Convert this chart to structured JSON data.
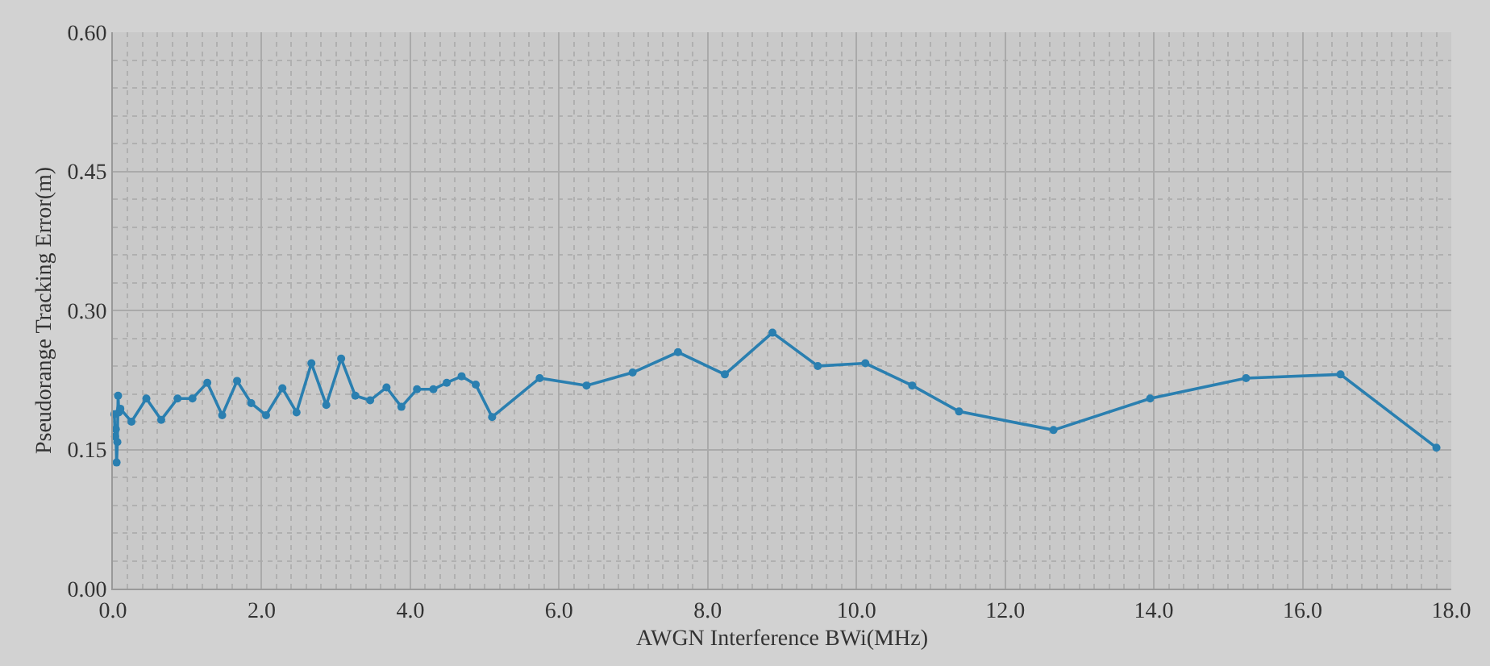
{
  "chart_data": {
    "type": "line",
    "xlabel": "AWGN Interference BWi(MHz)",
    "ylabel": "Pseudorange Tracking Error(m)",
    "marker": "circle",
    "line_style": "solid",
    "grid": true,
    "xlim": [
      0,
      18
    ],
    "xticks": [
      {
        "value": 0,
        "label": "0.0"
      },
      {
        "value": 2,
        "label": "2.0"
      },
      {
        "value": 4,
        "label": "4.0"
      },
      {
        "value": 6,
        "label": "6.0"
      },
      {
        "value": 8,
        "label": "8.0"
      },
      {
        "value": 10,
        "label": "10.0"
      },
      {
        "value": 12,
        "label": "12.0"
      },
      {
        "value": 14,
        "label": "14.0"
      },
      {
        "value": 16,
        "label": "16.0"
      },
      {
        "value": 18,
        "label": "18.0"
      }
    ],
    "ylim": [
      0,
      0.6
    ],
    "yticks": [
      {
        "value": 0,
        "label": "0.00"
      },
      {
        "value": 0.15,
        "label": "0.15"
      },
      {
        "value": 0.3,
        "label": "0.30"
      },
      {
        "value": 0.45,
        "label": "0.45"
      },
      {
        "value": 0.6,
        "label": "0.60"
      }
    ],
    "series": [
      {
        "color": "#2a7fb0",
        "x": [
          0.02,
          0.03,
          0.04,
          0.05,
          0.06,
          0.07,
          0.08,
          0.1,
          0.25,
          0.45,
          0.65,
          0.87,
          1.07,
          1.27,
          1.47,
          1.67,
          1.86,
          2.06,
          2.28,
          2.47,
          2.67,
          2.87,
          3.07,
          3.26,
          3.46,
          3.68,
          3.88,
          4.09,
          4.31,
          4.49,
          4.69,
          4.88,
          5.1,
          5.74,
          6.37,
          6.99,
          7.6,
          8.23,
          8.87,
          9.48,
          10.12,
          10.75,
          11.38,
          12.65,
          13.95,
          15.24,
          16.51,
          17.8
        ],
        "values": [
          0.188,
          0.164,
          0.172,
          0.136,
          0.158,
          0.208,
          0.19,
          0.194,
          0.18,
          0.205,
          0.182,
          0.205,
          0.205,
          0.222,
          0.187,
          0.224,
          0.2,
          0.187,
          0.216,
          0.19,
          0.243,
          0.198,
          0.248,
          0.208,
          0.203,
          0.217,
          0.196,
          0.215,
          0.215,
          0.222,
          0.229,
          0.22,
          0.185,
          0.227,
          0.219,
          0.233,
          0.255,
          0.231,
          0.276,
          0.24,
          0.243,
          0.219,
          0.191,
          0.171,
          0.205,
          0.227,
          0.231,
          0.152
        ]
      }
    ]
  }
}
